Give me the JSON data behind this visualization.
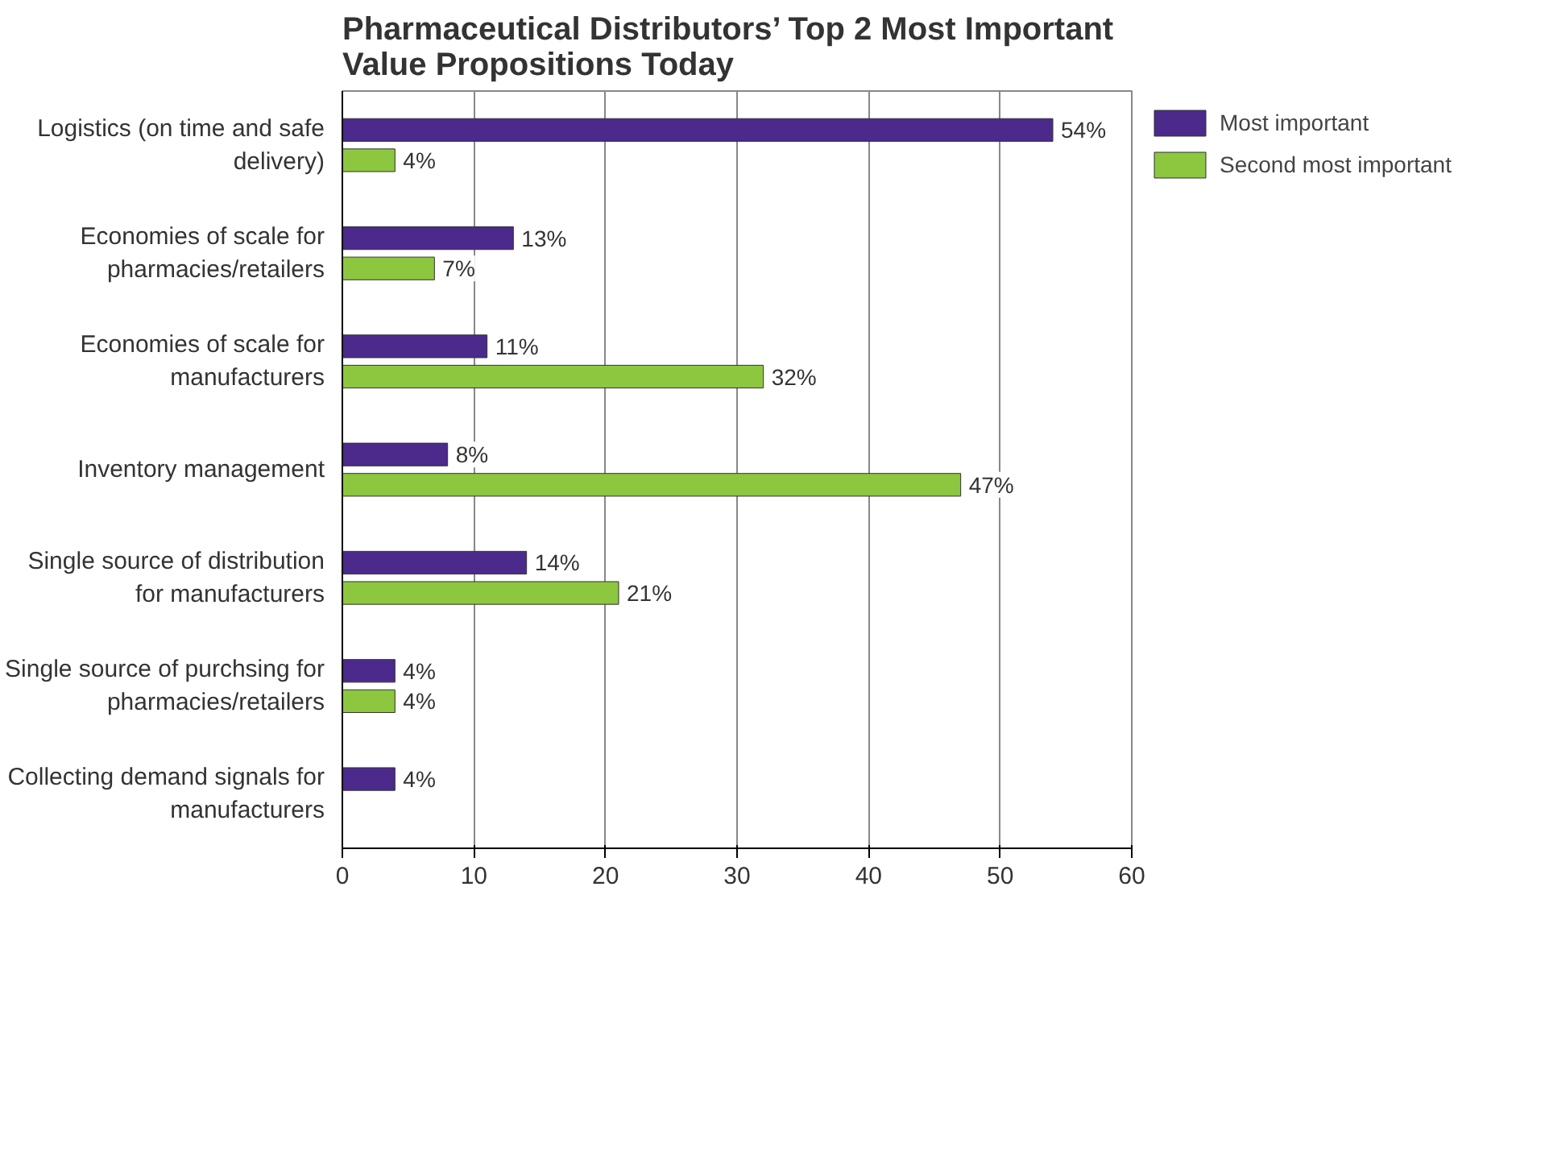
{
  "chart_data": {
    "type": "bar",
    "orientation": "horizontal",
    "title": "Pharmaceutical Distributors’ Top 2 Most Important Value Propositions Today",
    "categories": [
      "Logistics (on time and safe delivery)",
      "Economies of scale for pharmacies/retailers",
      "Economies of scale for manufacturers",
      "Inventory management",
      "Single source of distribution for manufacturers",
      "Single source of purchsing for pharmacies/retailers",
      "Collecting demand signals for manufacturers"
    ],
    "series": [
      {
        "name": "Most important",
        "color": "#4b2a8c",
        "values": [
          54,
          13,
          11,
          8,
          14,
          4,
          4
        ],
        "value_labels": [
          "54%",
          "13%",
          "11%",
          "8%",
          "14%",
          "4%",
          "4%"
        ]
      },
      {
        "name": "Second most important",
        "color": "#8dc63f",
        "values": [
          4,
          7,
          32,
          47,
          21,
          4,
          null
        ],
        "value_labels": [
          "4%",
          "7%",
          "32%",
          "47%",
          "21%",
          "4%",
          null
        ]
      }
    ],
    "xlim": [
      0,
      60
    ],
    "xticks": [
      0,
      10,
      20,
      30,
      40,
      50,
      60
    ],
    "grid": "x",
    "legend": "top right"
  }
}
